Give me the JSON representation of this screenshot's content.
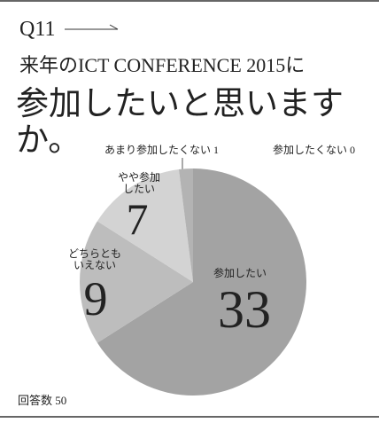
{
  "question": "Q11",
  "chart_data": {
    "type": "pie",
    "subtitle": "来年のICT CONFERENCE 2015に",
    "title": "参加したいと思いますか。",
    "categories": [
      "参加したい",
      "どちらとも\nいえない",
      "やや参加\nしたい",
      "あまり参加したくない",
      "参加したくない"
    ],
    "values": [
      33,
      9,
      7,
      1,
      0
    ],
    "colors": [
      "#a3a3a3",
      "#bdbdbd",
      "#d3d3d3",
      "#b3b3b3",
      "#999999"
    ],
    "total_label": "回答数",
    "total": 50
  }
}
